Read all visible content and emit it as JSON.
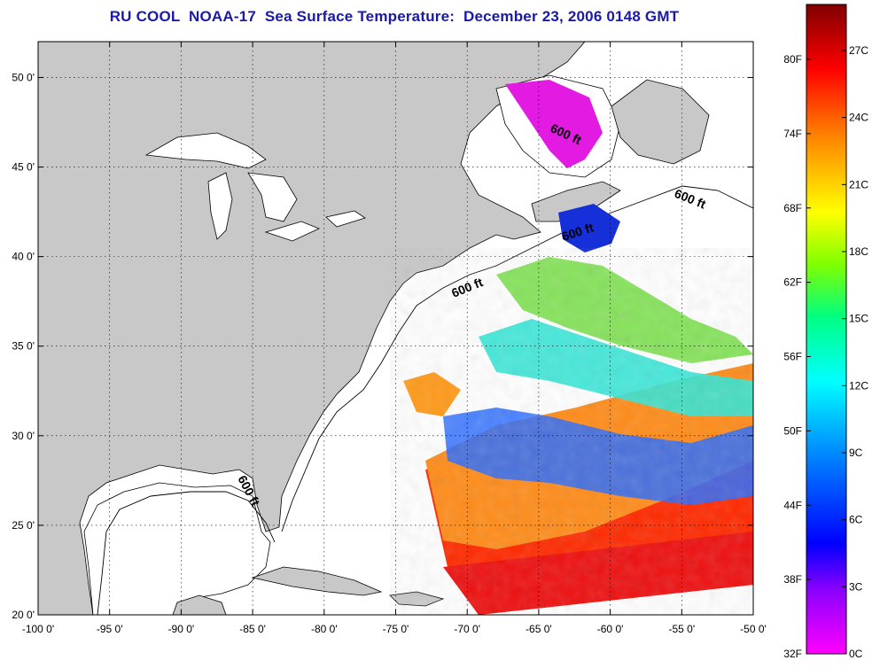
{
  "title": "RU COOL  NOAA-17  Sea Surface Temperature:  December 23, 2006 0148 GMT",
  "map": {
    "lon_range": [
      -100,
      -50
    ],
    "lat_range": [
      20,
      52
    ],
    "lon_ticks": [
      {
        "value": -100,
        "label": "-100 0'"
      },
      {
        "value": -95,
        "label": "-95 0'"
      },
      {
        "value": -90,
        "label": "-90 0'"
      },
      {
        "value": -85,
        "label": "-85 0'"
      },
      {
        "value": -80,
        "label": "-80 0'"
      },
      {
        "value": -75,
        "label": "-75 0'"
      },
      {
        "value": -70,
        "label": "-70 0'"
      },
      {
        "value": -65,
        "label": "-65 0'"
      },
      {
        "value": -60,
        "label": "-60 0'"
      },
      {
        "value": -55,
        "label": "-55 0'"
      },
      {
        "value": -50,
        "label": "-50 0'"
      }
    ],
    "lat_ticks": [
      {
        "value": 20,
        "label": "20 0'"
      },
      {
        "value": 25,
        "label": "25 0'"
      },
      {
        "value": 30,
        "label": "30 0'"
      },
      {
        "value": 35,
        "label": "35 0'"
      },
      {
        "value": 40,
        "label": "40 0'"
      },
      {
        "value": 45,
        "label": "45 0'"
      },
      {
        "value": 50,
        "label": "50 0'"
      }
    ],
    "contour_label": "600 ft",
    "land_color": "#c8c8c8",
    "ocean_color": "#ffffff"
  },
  "colorbar": {
    "f_ticks": [
      "80F",
      "74F",
      "68F",
      "62F",
      "56F",
      "50F",
      "44F",
      "38F",
      "32F"
    ],
    "c_ticks": [
      "27C",
      "24C",
      "21C",
      "18C",
      "15C",
      "12C",
      "9C",
      "6C",
      "3C",
      "0C"
    ],
    "range_c": [
      0,
      29
    ],
    "colors": [
      "#ff00ff",
      "#8000ff",
      "#0000ff",
      "#0080ff",
      "#00ffff",
      "#00ff80",
      "#80ff00",
      "#ffff00",
      "#ff8000",
      "#ff0000",
      "#800000"
    ]
  }
}
